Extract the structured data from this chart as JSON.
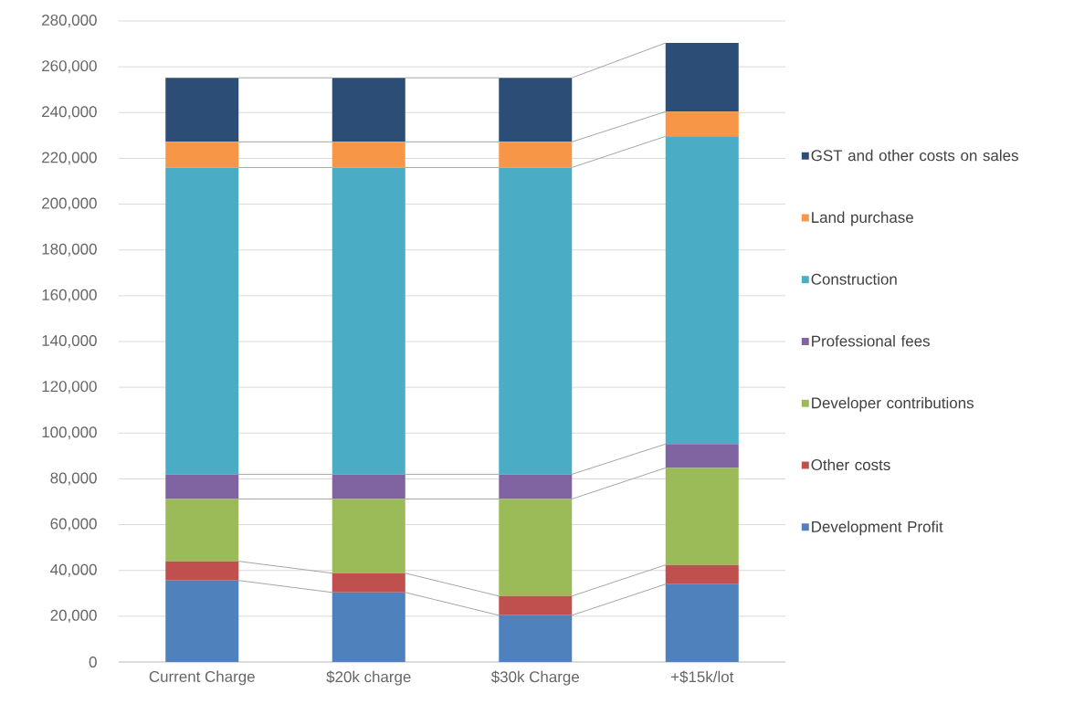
{
  "chart_data": {
    "type": "bar",
    "stacked": true,
    "categories": [
      "Current Charge",
      "$20k charge",
      "$30k Charge",
      "+$15k/lot"
    ],
    "series": [
      {
        "name": "Development Profit",
        "color": "#4f81bd",
        "values": [
          35600,
          30400,
          20400,
          34000
        ]
      },
      {
        "name": "Other costs",
        "color": "#c0504d",
        "values": [
          8400,
          8400,
          8400,
          8400
        ]
      },
      {
        "name": "Developer contributions",
        "color": "#9bbb59",
        "values": [
          27200,
          32400,
          42400,
          42400
        ]
      },
      {
        "name": "Professional fees",
        "color": "#8064a2",
        "values": [
          10800,
          10800,
          10800,
          10400
        ]
      },
      {
        "name": "Construction",
        "color": "#4bacc6",
        "values": [
          134000,
          134000,
          134000,
          134400
        ]
      },
      {
        "name": "Land purchase",
        "color": "#f79646",
        "values": [
          11200,
          11200,
          11200,
          10800
        ]
      },
      {
        "name": "GST and other costs on sales",
        "color": "#2c4d75",
        "values": [
          28000,
          28000,
          28000,
          30000
        ]
      }
    ],
    "ylim": [
      0,
      280000
    ],
    "yticks": [
      {
        "value": 0,
        "label": "0"
      },
      {
        "value": 20000,
        "label": "20,000"
      },
      {
        "value": 40000,
        "label": "40,000"
      },
      {
        "value": 60000,
        "label": "60,000"
      },
      {
        "value": 80000,
        "label": "80,000"
      },
      {
        "value": 100000,
        "label": "100,000"
      },
      {
        "value": 120000,
        "label": "120,000"
      },
      {
        "value": 140000,
        "label": "140,000"
      },
      {
        "value": 160000,
        "label": "160,000"
      },
      {
        "value": 180000,
        "label": "180,000"
      },
      {
        "value": 200000,
        "label": "200,000"
      },
      {
        "value": 220000,
        "label": "220,000"
      },
      {
        "value": 240000,
        "label": "240,000"
      },
      {
        "value": 260000,
        "label": "260,000"
      },
      {
        "value": 280000,
        "label": "280,000"
      }
    ],
    "grid": "y",
    "legend": "right"
  }
}
